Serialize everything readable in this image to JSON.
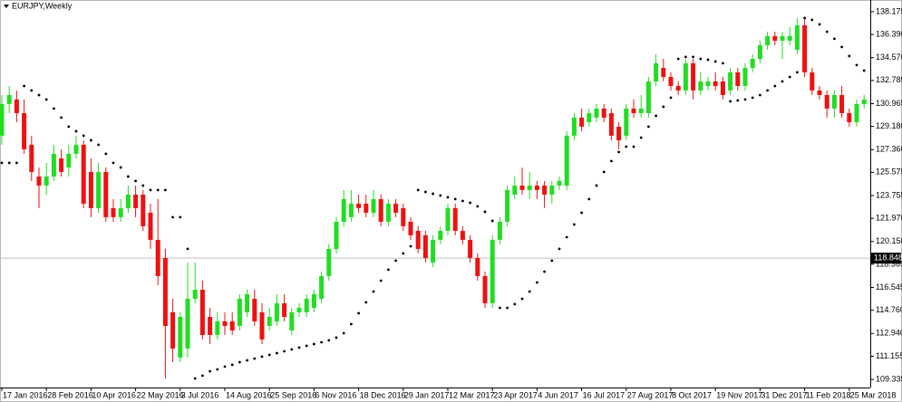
{
  "chart_data": {
    "type": "candlestick",
    "title": "EURJPY,Weekly",
    "categories": [
      "17 Jan 2016",
      null,
      null,
      null,
      null,
      null,
      "28 Feb 2016",
      null,
      null,
      null,
      null,
      null,
      "10 Apr 2016",
      null,
      null,
      null,
      null,
      null,
      "22 May 2016",
      null,
      null,
      null,
      null,
      null,
      "3 Jul 2016",
      null,
      null,
      null,
      null,
      null,
      "14 Aug 2016",
      null,
      null,
      null,
      null,
      null,
      "25 Sep 2016",
      null,
      null,
      null,
      null,
      null,
      "6 Nov 2016",
      null,
      null,
      null,
      null,
      null,
      "18 Dec 2016",
      null,
      null,
      null,
      null,
      null,
      "29 Jan 2017",
      null,
      null,
      null,
      null,
      null,
      "12 Mar 2017",
      null,
      null,
      null,
      null,
      null,
      "23 Apr 2017",
      null,
      null,
      null,
      null,
      null,
      "4 Jun 2017",
      null,
      null,
      null,
      null,
      null,
      "16 Jul 2017",
      null,
      null,
      null,
      null,
      null,
      "27 Aug 2017",
      null,
      null,
      null,
      null,
      null,
      "8 Oct 2017",
      null,
      null,
      null,
      null,
      null,
      "19 Nov 2017",
      null,
      null,
      null,
      null,
      null,
      "31 Dec 2017",
      null,
      null,
      null,
      null,
      null,
      "11 Feb 2018",
      null,
      null,
      null,
      null,
      null,
      "25 Mar 2018",
      null,
      null
    ],
    "open": [
      128.45,
      130.93,
      131.29,
      130.22,
      127.74,
      125.25,
      124.54,
      125.25,
      126.67,
      125.96,
      127.03,
      127.74,
      125.61,
      122.77,
      125.61,
      122.77,
      122.06,
      122.77,
      123.83,
      123.83,
      122.41,
      120.28,
      118.86,
      114.6,
      111.05,
      111.76,
      115.66,
      116.37,
      114.24,
      112.82,
      113.89,
      113.89,
      113.53,
      114.6,
      115.66,
      114.6,
      113.53,
      113.89,
      115.31,
      113.18,
      114.6,
      114.6,
      114.95,
      115.66,
      117.44,
      119.57,
      121.7,
      122.06,
      123.12,
      123.12,
      122.41,
      123.48,
      121.7,
      123.12,
      122.77,
      121.7,
      120.99,
      120.64,
      118.5,
      120.28,
      120.99,
      122.77,
      120.99,
      120.28,
      118.86,
      117.44,
      115.31,
      120.28,
      121.7,
      123.83,
      124.54,
      124.19,
      124.54,
      124.54,
      123.83,
      124.54,
      124.54,
      128.45,
      129.87,
      129.51,
      129.87,
      130.58,
      130.22,
      129.16,
      128.45,
      130.58,
      130.22,
      130.22,
      132.71,
      133.77,
      133.06,
      132.35,
      132.0,
      134.13,
      132.0,
      132.35,
      132.71,
      132.71,
      132.0,
      133.42,
      132.35,
      133.77,
      134.48,
      135.55,
      136.26,
      135.9,
      135.9,
      135.19,
      137.11,
      133.42,
      132.0,
      131.64,
      130.58,
      131.64,
      130.22,
      129.51,
      130.93
    ],
    "high": [
      131.64,
      132.35,
      132.0,
      131.29,
      128.45,
      125.96,
      126.32,
      127.74,
      127.38,
      127.74,
      128.45,
      128.09,
      126.67,
      126.32,
      125.96,
      123.48,
      123.48,
      124.54,
      124.54,
      124.19,
      123.12,
      123.48,
      119.57,
      115.66,
      114.6,
      118.5,
      118.5,
      117.08,
      114.95,
      114.6,
      114.6,
      114.6,
      116.02,
      116.37,
      116.37,
      115.31,
      114.95,
      116.02,
      116.02,
      114.95,
      115.31,
      116.02,
      116.37,
      117.79,
      119.93,
      122.06,
      124.19,
      124.19,
      123.83,
      123.83,
      124.19,
      123.83,
      123.48,
      123.48,
      123.12,
      122.06,
      121.35,
      120.99,
      120.64,
      121.35,
      123.12,
      123.12,
      121.35,
      120.64,
      119.22,
      117.79,
      120.64,
      122.06,
      124.54,
      125.25,
      125.96,
      125.61,
      124.9,
      124.9,
      124.9,
      125.25,
      128.8,
      130.22,
      130.58,
      130.58,
      130.93,
      130.93,
      130.58,
      129.51,
      130.93,
      131.29,
      131.64,
      133.06,
      134.84,
      134.48,
      133.42,
      132.71,
      134.48,
      134.48,
      133.42,
      133.06,
      133.42,
      133.06,
      133.77,
      133.77,
      134.13,
      134.84,
      135.9,
      136.61,
      136.61,
      136.61,
      136.97,
      137.68,
      137.68,
      133.77,
      132.35,
      132.0,
      132.0,
      132.35,
      130.58,
      131.29,
      131.64
    ],
    "low": [
      127.74,
      130.22,
      129.51,
      127.03,
      124.9,
      122.77,
      123.83,
      124.9,
      125.25,
      125.25,
      126.67,
      122.77,
      122.06,
      122.41,
      121.7,
      121.7,
      121.7,
      122.41,
      122.06,
      120.99,
      119.57,
      116.73,
      109.41,
      110.69,
      110.69,
      111.05,
      115.31,
      112.47,
      112.11,
      112.47,
      112.82,
      112.82,
      113.18,
      114.24,
      113.53,
      112.11,
      113.18,
      113.53,
      113.89,
      112.82,
      114.24,
      114.24,
      114.6,
      115.31,
      117.08,
      119.22,
      121.35,
      121.7,
      122.41,
      122.06,
      122.06,
      121.35,
      121.35,
      122.06,
      120.99,
      120.28,
      119.22,
      118.5,
      118.15,
      119.93,
      120.64,
      120.64,
      119.93,
      118.5,
      117.08,
      114.95,
      114.95,
      119.93,
      121.35,
      123.48,
      123.83,
      123.48,
      123.48,
      122.77,
      123.12,
      124.19,
      124.19,
      128.09,
      128.8,
      129.16,
      129.51,
      129.51,
      128.09,
      127.38,
      128.09,
      129.87,
      129.87,
      129.87,
      132.35,
      132.71,
      132.0,
      131.64,
      131.64,
      131.29,
      131.64,
      132.0,
      132.0,
      131.29,
      131.64,
      132.0,
      132.0,
      133.42,
      134.13,
      135.19,
      135.55,
      134.48,
      135.55,
      134.84,
      133.06,
      131.64,
      131.29,
      129.87,
      129.87,
      129.87,
      129.16,
      129.16,
      130.58
    ],
    "close": [
      130.93,
      131.64,
      130.22,
      127.38,
      125.61,
      124.54,
      125.25,
      127.03,
      125.61,
      127.03,
      127.74,
      123.12,
      122.77,
      125.61,
      122.06,
      122.06,
      122.77,
      123.83,
      122.77,
      121.35,
      120.28,
      117.44,
      113.53,
      111.76,
      114.24,
      115.66,
      116.37,
      112.82,
      112.82,
      113.89,
      113.53,
      113.18,
      115.66,
      116.02,
      113.89,
      112.47,
      114.24,
      115.31,
      114.24,
      114.6,
      114.95,
      115.66,
      116.02,
      117.44,
      119.57,
      121.7,
      123.48,
      123.12,
      122.77,
      122.41,
      123.48,
      121.7,
      123.12,
      122.41,
      121.35,
      120.64,
      119.57,
      118.86,
      120.28,
      120.99,
      122.77,
      120.99,
      120.28,
      118.86,
      117.44,
      115.31,
      120.28,
      121.7,
      124.19,
      124.54,
      124.19,
      124.54,
      124.19,
      123.83,
      124.54,
      124.9,
      128.45,
      129.87,
      129.16,
      130.22,
      130.58,
      129.87,
      128.45,
      128.09,
      130.58,
      130.22,
      130.58,
      132.71,
      134.13,
      133.06,
      132.35,
      132.0,
      134.13,
      132.0,
      132.71,
      132.71,
      132.35,
      131.64,
      133.42,
      132.35,
      133.77,
      134.48,
      135.55,
      136.26,
      135.9,
      136.26,
      136.26,
      137.11,
      133.42,
      132.0,
      131.64,
      130.58,
      131.64,
      130.22,
      129.51,
      130.93,
      131.29
    ],
    "sar": {
      "color": "#000000",
      "values": [
        126.32,
        126.32,
        126.32,
        132.35,
        132.0,
        131.64,
        131.29,
        130.58,
        129.87,
        129.16,
        128.8,
        128.45,
        128.09,
        127.74,
        127.03,
        126.32,
        125.96,
        125.25,
        124.9,
        124.54,
        124.19,
        124.19,
        124.19,
        122.06,
        122.06,
        119.57,
        109.41,
        109.63,
        109.98,
        110.12,
        110.34,
        110.48,
        110.69,
        110.83,
        110.97,
        111.12,
        111.26,
        111.4,
        111.54,
        111.69,
        111.83,
        111.97,
        112.11,
        112.25,
        112.4,
        112.61,
        112.96,
        113.67,
        114.53,
        115.38,
        116.23,
        117.08,
        117.94,
        118.65,
        119.22,
        119.78,
        124.19,
        124.04,
        123.9,
        123.76,
        123.62,
        123.48,
        123.33,
        123.19,
        122.91,
        122.48,
        121.77,
        114.95,
        114.95,
        115.24,
        115.66,
        116.23,
        116.94,
        117.79,
        118.65,
        119.57,
        120.49,
        121.49,
        122.41,
        123.48,
        124.54,
        125.61,
        126.46,
        127.17,
        127.59,
        127.59,
        128.3,
        129.16,
        130.01,
        130.72,
        131.43,
        134.48,
        134.63,
        134.63,
        134.48,
        134.41,
        134.27,
        134.13,
        131.15,
        131.22,
        131.29,
        131.43,
        131.64,
        132.0,
        132.35,
        132.71,
        133.06,
        133.42,
        137.68,
        137.54,
        137.18,
        136.61,
        136.05,
        135.41,
        134.7,
        133.99,
        133.56
      ]
    },
    "up_color": "#22dd22",
    "down_color": "#ee1111",
    "current_price": 118.848,
    "ylim": [
      108.7,
      138.81
    ],
    "yticks": [
      138.175,
      {
        "value": 136.39,
        "label": "136.390"
      },
      {
        "value": 134.57,
        "label": "134.570"
      },
      132.785,
      130.965,
      {
        "value": 129.18,
        "label": "129.180"
      },
      {
        "value": 127.36,
        "label": "127.360"
      },
      125.575,
      123.755,
      {
        "value": 121.97,
        "label": "121.970"
      },
      {
        "value": 120.15,
        "label": "120.150"
      },
      118.365,
      116.545,
      {
        "value": 114.76,
        "label": "114.760"
      },
      {
        "value": 112.94,
        "label": "112.940"
      },
      111.155,
      109.335
    ]
  }
}
